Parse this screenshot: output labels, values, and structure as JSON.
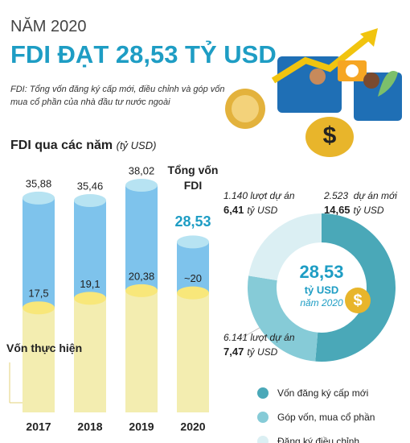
{
  "header": {
    "kicker": "NĂM 2020",
    "title": "FDI ĐẠT 28,53 TỶ USD",
    "subtitle": "FDI: Tổng vốn đăng ký cấp mới, điều chỉnh và góp vốn mua cổ phần của nhà đầu tư nước ngoài"
  },
  "chart_data": [
    {
      "type": "cylinder",
      "title": "FDI qua các năm",
      "unit": "(tỷ USD)",
      "categories": [
        "2017",
        "2018",
        "2019",
        "2020"
      ],
      "series": [
        {
          "name": "Tổng vốn FDI",
          "color": "#7ec3ec",
          "values": [
            35.88,
            35.46,
            38.02,
            28.53
          ],
          "value_labels": [
            "35,88",
            "35,46",
            "38,02",
            "28,53"
          ]
        },
        {
          "name": "Vốn thực hiện",
          "color": "#f3edb0",
          "values": [
            17.5,
            19.1,
            20.38,
            20
          ],
          "value_labels": [
            "17,5",
            "19,1",
            "20,38",
            "~20"
          ]
        }
      ]
    },
    {
      "type": "donut",
      "center_value": "28,53",
      "center_unit": "tỷ USD",
      "center_note": "năm 2020",
      "unit": "tỷ USD",
      "categories": [
        "Vốn đăng ký cấp mới",
        "Góp vốn, mua cổ phần",
        "Đăng ký điều chỉnh"
      ],
      "values": [
        14.65,
        7.47,
        6.41
      ],
      "value_labels": [
        "14,65",
        "7,47",
        "6,41"
      ],
      "notes": [
        "2.523  dự án mới",
        "6.141 lượt dự án",
        "1.140 lượt dự án"
      ],
      "colors": [
        "#4aa8b8",
        "#86cbd7",
        "#dbeff3"
      ]
    }
  ]
}
